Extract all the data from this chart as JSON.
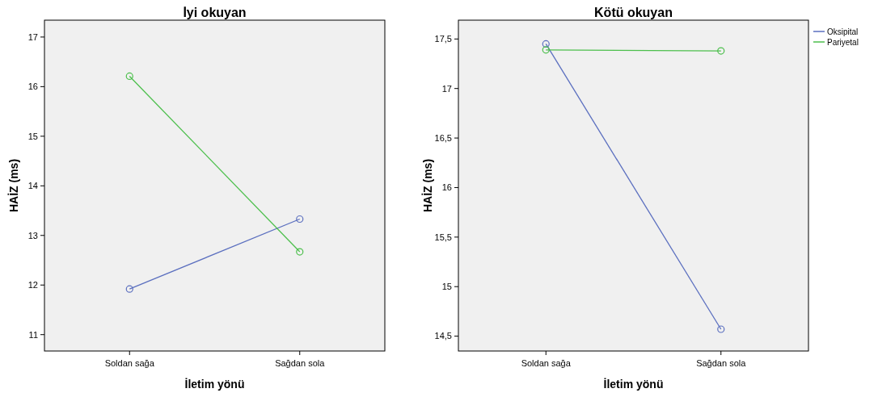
{
  "chart_data": [
    {
      "type": "line",
      "title": "İyi okuyan",
      "xlabel": "İletim yönü",
      "ylabel": "HAİZ (ms)",
      "categories": [
        "Soldan sağa",
        "Sağdan sola"
      ],
      "ylim": [
        10.67,
        17.34
      ],
      "yticks": [
        11,
        12,
        13,
        14,
        15,
        16,
        17
      ],
      "marker": "circle",
      "legend": false,
      "series": [
        {
          "color": "#5b6fbf",
          "values": [
            11.92,
            13.33
          ]
        },
        {
          "color": "#4cbf4c",
          "values": [
            16.21,
            12.67
          ]
        }
      ]
    },
    {
      "type": "line",
      "title": "Kötü okuyan",
      "xlabel": "İletim yönü",
      "ylabel": "HAİZ (ms)",
      "categories": [
        "Soldan sağa",
        "Sağdan sola"
      ],
      "ylim": [
        14.35,
        17.69
      ],
      "yticks": [
        {
          "value": 14.5,
          "label": "14,5"
        },
        {
          "value": 15,
          "label": "15"
        },
        {
          "value": 15.5,
          "label": "15,5"
        },
        {
          "value": 16,
          "label": "16"
        },
        {
          "value": 16.5,
          "label": "16,5"
        },
        {
          "value": 17,
          "label": "17"
        },
        {
          "value": 17.5,
          "label": "17,5"
        }
      ],
      "marker": "circle",
      "legend": "top right",
      "series": [
        {
          "name": "Oksipital",
          "color": "#5b6fbf",
          "values": [
            17.45,
            14.57
          ]
        },
        {
          "name": "Pariyetal",
          "color": "#4cbf4c",
          "values": [
            17.39,
            17.38
          ]
        }
      ]
    }
  ]
}
